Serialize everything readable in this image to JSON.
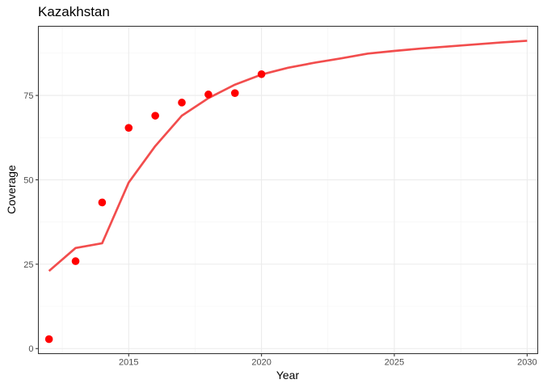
{
  "chart_data": {
    "type": "line",
    "title": "Kazakhstan",
    "xlabel": "Year",
    "ylabel": "Coverage",
    "xlim": [
      2011.6,
      2030.4
    ],
    "ylim": [
      -1.5,
      95.5
    ],
    "x_ticks": [
      2015,
      2020,
      2025,
      2030
    ],
    "x_minor": [
      2012.5,
      2017.5,
      2022.5,
      2027.5
    ],
    "y_ticks": [
      0,
      25,
      50,
      75
    ],
    "y_minor": [
      12.5,
      37.5,
      62.5,
      87.5
    ],
    "grid": true,
    "colors": {
      "line": "#f24d4d",
      "points": "#ff0000"
    },
    "series": [
      {
        "kind": "line",
        "x": [
          2012,
          2013,
          2014,
          2015,
          2016,
          2017,
          2018,
          2019,
          2020,
          2021,
          2022,
          2023,
          2024,
          2025,
          2026,
          2027,
          2028,
          2029,
          2030
        ],
        "y": [
          23,
          29.8,
          31.2,
          49.2,
          60,
          69,
          74.2,
          78.2,
          81.2,
          83.2,
          84.7,
          86,
          87.4,
          88.2,
          88.9,
          89.5,
          90.1,
          90.7,
          91.2
        ]
      },
      {
        "kind": "scatter",
        "x": [
          2012,
          2013,
          2014,
          2015,
          2016,
          2017,
          2018,
          2019,
          2020
        ],
        "y": [
          2.8,
          25.9,
          43.3,
          65.4,
          69,
          72.9,
          75.3,
          75.7,
          81.3
        ]
      }
    ]
  }
}
